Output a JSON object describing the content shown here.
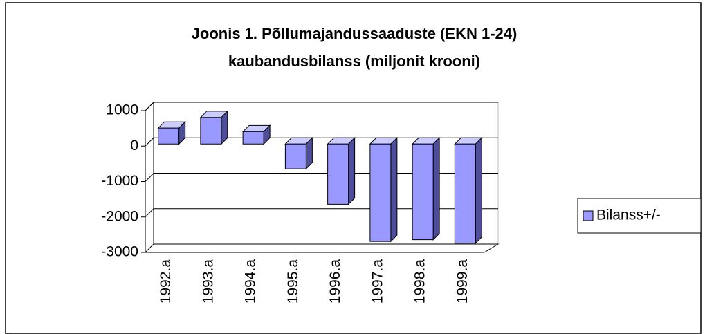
{
  "chart_data": {
    "type": "bar3d",
    "title": "Joonis 1. Põllumajandussaaduste (EKN 1-24)",
    "subtitle": "kaubandusbilanss (miljonit krooni)",
    "categories": [
      "1992.a",
      "1993.a",
      "1994.a",
      "1995.a",
      "1996.a",
      "1997.a",
      "1998.a",
      "1999.a"
    ],
    "series": [
      {
        "name": "Bilanss+/-",
        "color": "#9999ff",
        "values": [
          450,
          750,
          350,
          -700,
          -1700,
          -2750,
          -2700,
          -2800
        ]
      }
    ],
    "ylim": [
      -3000,
      1000
    ],
    "yticks": [
      -3000,
      -2000,
      -1000,
      0,
      1000
    ],
    "grid": true,
    "legend": "right"
  }
}
